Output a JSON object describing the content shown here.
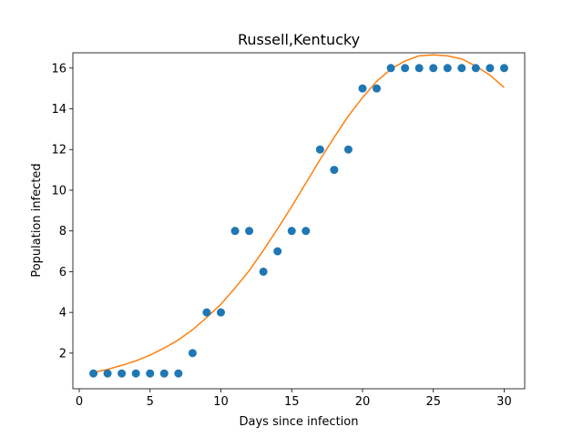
{
  "chart_data": {
    "type": "scatter",
    "title": "Russell,Kentucky",
    "xlabel": "Days since infection",
    "ylabel": "Population infected",
    "xlim": [
      -0.45,
      31.45
    ],
    "ylim": [
      0.25,
      16.75
    ],
    "xticks": [
      0,
      5,
      10,
      15,
      20,
      25,
      30
    ],
    "yticks": [
      2,
      4,
      6,
      8,
      10,
      12,
      14,
      16
    ],
    "grid": false,
    "series": [
      {
        "kind": "scatter",
        "color": "#1f77b4",
        "x": [
          1,
          2,
          3,
          4,
          5,
          6,
          7,
          8,
          9,
          10,
          11,
          12,
          13,
          14,
          15,
          16,
          17,
          18,
          19,
          20,
          21,
          22,
          23,
          24,
          25,
          26,
          27,
          28,
          29,
          30
        ],
        "y": [
          1,
          1,
          1,
          1,
          1,
          1,
          1,
          2,
          4,
          4,
          8,
          8,
          6,
          7,
          8,
          8,
          12,
          11,
          12,
          15,
          15,
          16,
          16,
          16,
          16,
          16,
          16,
          16,
          16,
          16
        ]
      },
      {
        "kind": "line",
        "color": "#ff7f0e",
        "x": [
          1,
          2,
          3,
          4,
          5,
          6,
          7,
          8,
          9,
          10,
          11,
          12,
          13,
          14,
          15,
          16,
          17,
          18,
          19,
          20,
          21,
          22,
          23,
          24,
          25,
          26,
          27,
          28,
          29,
          30
        ],
        "y": [
          1.05,
          1.2,
          1.4,
          1.62,
          1.9,
          2.25,
          2.65,
          3.15,
          3.75,
          4.4,
          5.2,
          6.05,
          7.05,
          8.1,
          9.2,
          10.35,
          11.5,
          12.6,
          13.65,
          14.55,
          15.35,
          15.95,
          16.35,
          16.6,
          16.65,
          16.6,
          16.45,
          16.1,
          15.65,
          15.05
        ]
      }
    ]
  }
}
